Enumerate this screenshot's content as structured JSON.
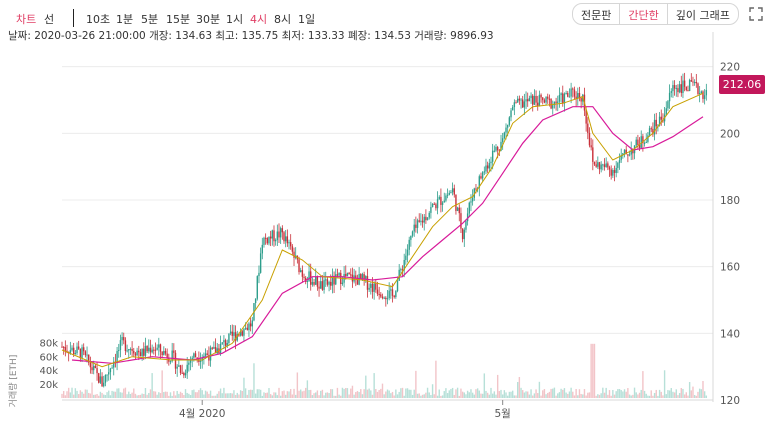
{
  "toolbar": {
    "chart_label": "차트",
    "line_label": "선",
    "intervals": [
      "10초",
      "1분",
      "5분",
      "15분",
      "30분",
      "1시",
      "4시",
      "8시",
      "1일"
    ],
    "active_interval": "4시",
    "view_modes": [
      "전문판",
      "간단한",
      "깊이 그래프"
    ],
    "active_view": "간단한"
  },
  "info_bar": {
    "date_label": "날짜:",
    "date": "2020-03-26 21:00:00",
    "open_label": "개장:",
    "open": "134.63",
    "high_label": "최고:",
    "high": "135.75",
    "low_label": "최저:",
    "low": "133.33",
    "close_label": "폐장:",
    "close": "134.53",
    "volume_label": "거래량:",
    "volume": "9896.93"
  },
  "colors": {
    "up": "#2e9e8c",
    "down": "#c9303a",
    "ma_fast": "#c8a000",
    "ma_slow": "#d81b9a",
    "accent": "#e03e64",
    "price_tag": "#c2185b"
  },
  "chart_data": {
    "type": "candlestick",
    "price_axis": {
      "ylim": [
        120,
        228
      ],
      "ticks": [
        120,
        140,
        160,
        180,
        200,
        220
      ]
    },
    "volume_axis": {
      "title": "거래량 [ETH]",
      "ticks": [
        "20k",
        "40k",
        "60k",
        "80k"
      ],
      "tick_values": [
        20000,
        40000,
        60000,
        80000
      ],
      "ylim": [
        0,
        95000
      ]
    },
    "x_axis": {
      "range": [
        "2020-03-18",
        "2020-05-22"
      ],
      "tick_labels": [
        "4월 2020",
        "5월"
      ],
      "tick_dates": [
        "2020-04-01",
        "2020-05-01"
      ]
    },
    "last_price": "212.06",
    "price_path": [
      [
        "2020-03-18",
        136
      ],
      [
        "2020-03-20",
        134
      ],
      [
        "2020-03-22",
        125
      ],
      [
        "2020-03-24",
        137
      ],
      [
        "2020-03-26",
        134
      ],
      [
        "2020-03-27",
        136
      ],
      [
        "2020-03-29",
        133
      ],
      [
        "2020-03-30",
        128
      ],
      [
        "2020-03-31",
        133
      ],
      [
        "2020-04-02",
        134
      ],
      [
        "2020-04-04",
        139
      ],
      [
        "2020-04-06",
        143
      ],
      [
        "2020-04-07",
        168
      ],
      [
        "2020-04-09",
        170
      ],
      [
        "2020-04-11",
        158
      ],
      [
        "2020-04-13",
        154
      ],
      [
        "2020-04-15",
        157
      ],
      [
        "2020-04-17",
        156
      ],
      [
        "2020-04-18",
        154
      ],
      [
        "2020-04-20",
        151
      ],
      [
        "2020-04-22",
        170
      ],
      [
        "2020-04-24",
        178
      ],
      [
        "2020-04-26",
        183
      ],
      [
        "2020-04-27",
        170
      ],
      [
        "2020-04-28",
        182
      ],
      [
        "2020-04-30",
        194
      ],
      [
        "2020-05-01",
        198
      ],
      [
        "2020-05-02",
        208
      ],
      [
        "2020-05-04",
        210
      ],
      [
        "2020-05-06",
        209
      ],
      [
        "2020-05-08",
        212
      ],
      [
        "2020-05-09",
        211
      ],
      [
        "2020-05-10",
        191
      ],
      [
        "2020-05-12",
        189
      ],
      [
        "2020-05-13",
        193
      ],
      [
        "2020-05-15",
        198
      ],
      [
        "2020-05-17",
        205
      ],
      [
        "2020-05-18",
        214
      ],
      [
        "2020-05-20",
        214
      ],
      [
        "2020-05-21",
        212.06
      ]
    ],
    "ma_fast": [
      [
        "2020-03-18",
        135
      ],
      [
        "2020-03-22",
        130
      ],
      [
        "2020-03-25",
        133
      ],
      [
        "2020-03-29",
        132
      ],
      [
        "2020-04-01",
        132
      ],
      [
        "2020-04-04",
        137
      ],
      [
        "2020-04-07",
        150
      ],
      [
        "2020-04-09",
        165
      ],
      [
        "2020-04-11",
        162
      ],
      [
        "2020-04-13",
        157
      ],
      [
        "2020-04-17",
        156
      ],
      [
        "2020-04-20",
        154
      ],
      [
        "2020-04-22",
        163
      ],
      [
        "2020-04-24",
        172
      ],
      [
        "2020-04-26",
        178
      ],
      [
        "2020-04-28",
        181
      ],
      [
        "2020-04-30",
        190
      ],
      [
        "2020-05-02",
        203
      ],
      [
        "2020-05-04",
        208
      ],
      [
        "2020-05-07",
        209
      ],
      [
        "2020-05-09",
        211
      ],
      [
        "2020-05-10",
        200
      ],
      [
        "2020-05-12",
        192
      ],
      [
        "2020-05-14",
        195
      ],
      [
        "2020-05-16",
        200
      ],
      [
        "2020-05-18",
        208
      ],
      [
        "2020-05-21",
        212
      ]
    ],
    "ma_slow": [
      [
        "2020-03-19",
        132
      ],
      [
        "2020-03-23",
        131
      ],
      [
        "2020-03-27",
        133
      ],
      [
        "2020-03-31",
        132
      ],
      [
        "2020-04-03",
        134
      ],
      [
        "2020-04-06",
        139
      ],
      [
        "2020-04-09",
        152
      ],
      [
        "2020-04-12",
        157
      ],
      [
        "2020-04-15",
        157
      ],
      [
        "2020-04-18",
        156
      ],
      [
        "2020-04-21",
        157
      ],
      [
        "2020-04-23",
        163
      ],
      [
        "2020-04-25",
        168
      ],
      [
        "2020-04-27",
        173
      ],
      [
        "2020-04-29",
        179
      ],
      [
        "2020-05-01",
        188
      ],
      [
        "2020-05-03",
        197
      ],
      [
        "2020-05-05",
        204
      ],
      [
        "2020-05-08",
        208
      ],
      [
        "2020-05-10",
        208
      ],
      [
        "2020-05-12",
        200
      ],
      [
        "2020-05-14",
        195
      ],
      [
        "2020-05-16",
        196
      ],
      [
        "2020-05-18",
        199
      ],
      [
        "2020-05-21",
        205
      ]
    ]
  }
}
